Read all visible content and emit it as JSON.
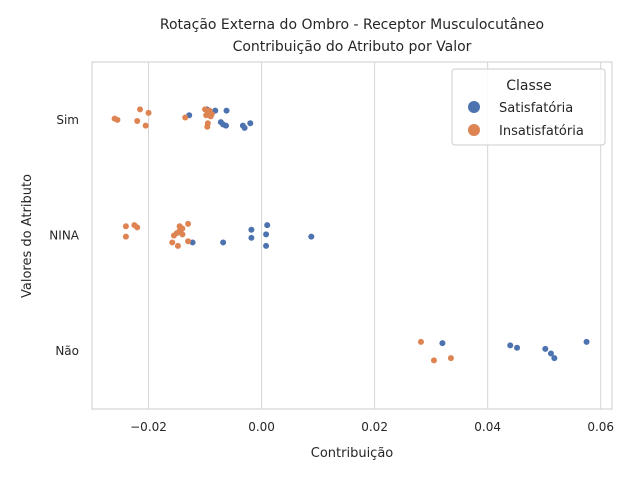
{
  "chart_data": {
    "type": "scatter",
    "title": "Rotação Externa do Ombro - Receptor Musculocutâneo",
    "subtitle": "Contribuição do Atributo por Valor",
    "xlabel": "Contribuição",
    "ylabel": "Valores do Atributo",
    "categories": [
      "Sim",
      "NINA",
      "Não"
    ],
    "xlim": [
      -0.03,
      0.062
    ],
    "xticks": [
      -0.02,
      0.0,
      0.02,
      0.04,
      0.06
    ],
    "xtick_labels": [
      "−0.02",
      "0.00",
      "0.02",
      "0.04",
      "0.06"
    ],
    "grid": true,
    "legend": {
      "title": "Classe",
      "placement": "top-right"
    },
    "series": [
      {
        "name": "Satisfatória",
        "color": "#4c72b0",
        "points": [
          {
            "x": -0.0128,
            "y": "Sim",
            "j": 0.04
          },
          {
            "x": -0.0082,
            "y": "Sim",
            "j": 0.08
          },
          {
            "x": -0.0062,
            "y": "Sim",
            "j": 0.08
          },
          {
            "x": -0.0072,
            "y": "Sim",
            "j": -0.02
          },
          {
            "x": -0.0068,
            "y": "Sim",
            "j": -0.04
          },
          {
            "x": -0.0063,
            "y": "Sim",
            "j": -0.05
          },
          {
            "x": -0.0033,
            "y": "Sim",
            "j": -0.05
          },
          {
            "x": -0.003,
            "y": "Sim",
            "j": -0.07
          },
          {
            "x": -0.002,
            "y": "Sim",
            "j": -0.03
          },
          {
            "x": -0.0097,
            "y": "Sim",
            "j": 0.09
          },
          {
            "x": 0.001,
            "y": "NINA",
            "j": 0.09
          },
          {
            "x": -0.0018,
            "y": "NINA",
            "j": 0.05
          },
          {
            "x": 0.0008,
            "y": "NINA",
            "j": 0.01
          },
          {
            "x": -0.0018,
            "y": "NINA",
            "j": -0.02
          },
          {
            "x": 0.0088,
            "y": "NINA",
            "j": -0.01
          },
          {
            "x": -0.0122,
            "y": "NINA",
            "j": -0.06
          },
          {
            "x": -0.0068,
            "y": "NINA",
            "j": -0.06
          },
          {
            "x": 0.0008,
            "y": "NINA",
            "j": -0.09
          },
          {
            "x": 0.032,
            "y": "Não",
            "j": 0.07
          },
          {
            "x": 0.044,
            "y": "Não",
            "j": 0.05
          },
          {
            "x": 0.0452,
            "y": "Não",
            "j": 0.03
          },
          {
            "x": 0.0575,
            "y": "Não",
            "j": 0.08
          },
          {
            "x": 0.0502,
            "y": "Não",
            "j": 0.02
          },
          {
            "x": 0.0512,
            "y": "Não",
            "j": -0.02
          },
          {
            "x": 0.0518,
            "y": "Não",
            "j": -0.06
          }
        ]
      },
      {
        "name": "Insatisfatória",
        "color": "#dd8452",
        "points": [
          {
            "x": -0.026,
            "y": "Sim",
            "j": 0.01
          },
          {
            "x": -0.0255,
            "y": "Sim",
            "j": 0.0
          },
          {
            "x": -0.0215,
            "y": "Sim",
            "j": 0.09
          },
          {
            "x": -0.022,
            "y": "Sim",
            "j": -0.01
          },
          {
            "x": -0.02,
            "y": "Sim",
            "j": 0.06
          },
          {
            "x": -0.0205,
            "y": "Sim",
            "j": -0.05
          },
          {
            "x": -0.0135,
            "y": "Sim",
            "j": 0.02
          },
          {
            "x": -0.01,
            "y": "Sim",
            "j": 0.09
          },
          {
            "x": -0.0095,
            "y": "Sim",
            "j": 0.06
          },
          {
            "x": -0.0098,
            "y": "Sim",
            "j": 0.04
          },
          {
            "x": -0.0092,
            "y": "Sim",
            "j": 0.08
          },
          {
            "x": -0.009,
            "y": "Sim",
            "j": 0.03
          },
          {
            "x": -0.0088,
            "y": "Sim",
            "j": 0.05
          },
          {
            "x": -0.0095,
            "y": "Sim",
            "j": -0.03
          },
          {
            "x": -0.0096,
            "y": "Sim",
            "j": -0.06
          },
          {
            "x": -0.024,
            "y": "NINA",
            "j": 0.08
          },
          {
            "x": -0.0225,
            "y": "NINA",
            "j": 0.09
          },
          {
            "x": -0.022,
            "y": "NINA",
            "j": 0.07
          },
          {
            "x": -0.024,
            "y": "NINA",
            "j": -0.01
          },
          {
            "x": -0.0145,
            "y": "NINA",
            "j": 0.08
          },
          {
            "x": -0.013,
            "y": "NINA",
            "j": 0.1
          },
          {
            "x": -0.014,
            "y": "NINA",
            "j": 0.06
          },
          {
            "x": -0.0145,
            "y": "NINA",
            "j": 0.04
          },
          {
            "x": -0.0155,
            "y": "NINA",
            "j": 0.0
          },
          {
            "x": -0.014,
            "y": "NINA",
            "j": 0.01
          },
          {
            "x": -0.015,
            "y": "NINA",
            "j": 0.02
          },
          {
            "x": -0.0158,
            "y": "NINA",
            "j": -0.06
          },
          {
            "x": -0.013,
            "y": "NINA",
            "j": -0.05
          },
          {
            "x": -0.0148,
            "y": "NINA",
            "j": -0.09
          },
          {
            "x": 0.0282,
            "y": "Não",
            "j": 0.08
          },
          {
            "x": 0.0335,
            "y": "Não",
            "j": -0.06
          },
          {
            "x": 0.0305,
            "y": "Não",
            "j": -0.08
          }
        ]
      }
    ]
  }
}
